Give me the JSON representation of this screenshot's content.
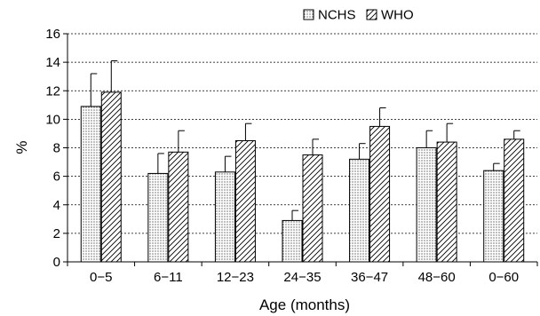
{
  "chart_data": {
    "type": "bar",
    "title": "",
    "xlabel": "Age (months)",
    "ylabel": "%",
    "ylim": [
      0,
      16
    ],
    "yticks": [
      0,
      2,
      4,
      6,
      8,
      10,
      12,
      14,
      16
    ],
    "grid": "horizontal dashed at major y ticks",
    "legend_position": "top-right",
    "categories": [
      "0−5",
      "6−11",
      "12−23",
      "24−35",
      "36−47",
      "48−60",
      "0−60"
    ],
    "series": [
      {
        "name": "NCHS",
        "pattern": "dots",
        "values": [
          10.9,
          6.2,
          6.3,
          2.9,
          7.2,
          8.0,
          6.4
        ],
        "error_upper": [
          13.2,
          7.6,
          7.4,
          3.6,
          8.3,
          9.2,
          6.9
        ]
      },
      {
        "name": "WHO",
        "pattern": "diagonal-hatch",
        "values": [
          11.9,
          7.7,
          8.5,
          7.5,
          9.5,
          8.4,
          8.6
        ],
        "error_upper": [
          14.1,
          9.2,
          9.7,
          8.6,
          10.8,
          9.7,
          9.2
        ]
      }
    ],
    "colors": {
      "bar_fill": "#ffffff",
      "ink": "#000000",
      "grid": "#000000"
    }
  }
}
